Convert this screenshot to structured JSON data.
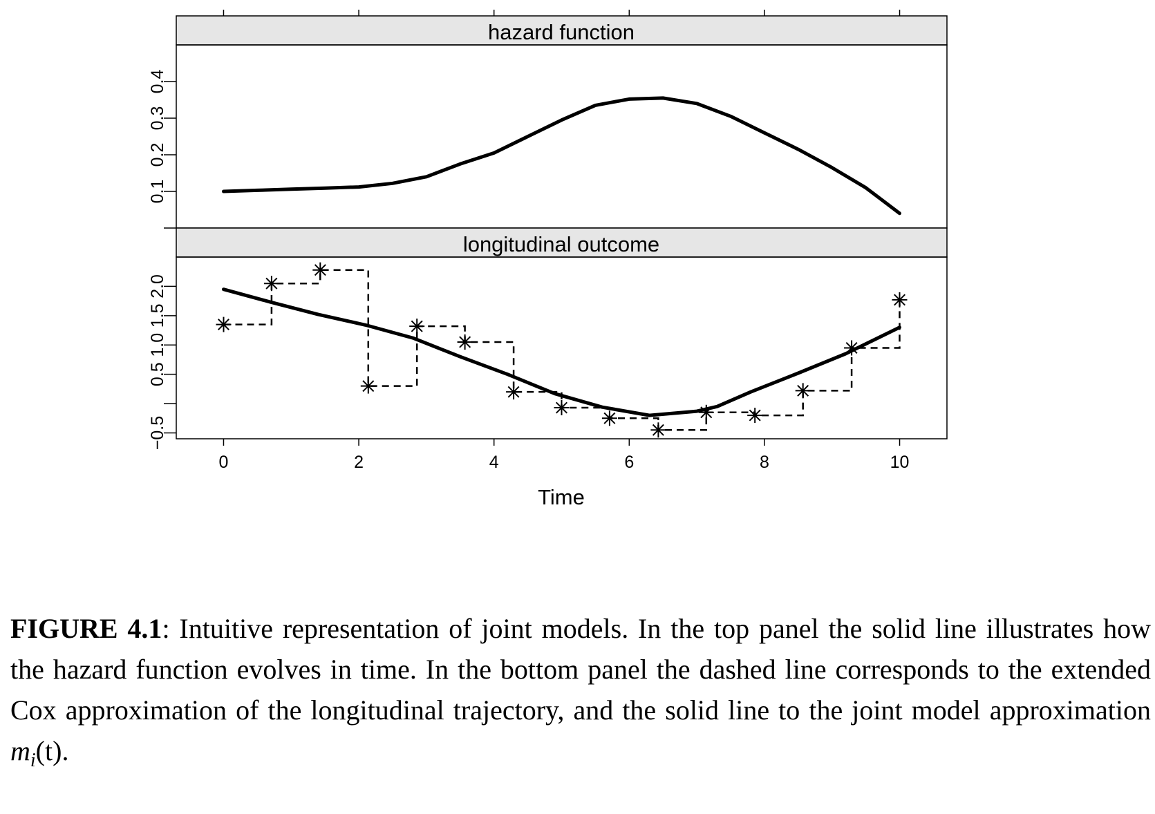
{
  "chart_data": [
    {
      "type": "line",
      "title": "hazard function",
      "xlim": [
        -0.7,
        10.7
      ],
      "ylim": [
        0,
        0.5
      ],
      "yticks": [
        0.1,
        0.2,
        0.3,
        0.4
      ],
      "ytick_labels": [
        "0.1",
        "0.2",
        "0.3",
        "0.4"
      ],
      "top_tick_positions": [
        0,
        2,
        4,
        6,
        8,
        10
      ],
      "series": [
        {
          "style": "solid",
          "x": [
            0,
            0.5,
            1,
            1.5,
            2,
            2.5,
            3,
            3.5,
            4,
            4.5,
            5,
            5.5,
            6,
            6.5,
            7,
            7.5,
            8,
            8.5,
            9,
            9.5,
            10
          ],
          "y": [
            0.1,
            0.103,
            0.106,
            0.109,
            0.112,
            0.122,
            0.14,
            0.175,
            0.205,
            0.25,
            0.295,
            0.335,
            0.352,
            0.355,
            0.34,
            0.305,
            0.26,
            0.215,
            0.165,
            0.11,
            0.04
          ]
        }
      ]
    },
    {
      "type": "line",
      "title": "longitudinal outcome",
      "xlabel": "Time",
      "xlim": [
        -0.7,
        10.7
      ],
      "ylim": [
        -0.6,
        2.5
      ],
      "xticks": [
        0,
        2,
        4,
        6,
        8,
        10
      ],
      "xtick_labels": [
        "0",
        "2",
        "4",
        "6",
        "8",
        "10"
      ],
      "yticks": [
        -0.5,
        0,
        0.5,
        1.0,
        1.5,
        2.0
      ],
      "ytick_labels": [
        "−0.5",
        "",
        "0.5",
        "1.0",
        "1.5",
        "2.0"
      ],
      "series": [
        {
          "style": "solid",
          "x": [
            0,
            0.7,
            1.4,
            2.1,
            2.8,
            3.5,
            4.2,
            4.9,
            5.6,
            6.3,
            7.0,
            7.3,
            7.8,
            8.5,
            9.2,
            10
          ],
          "y": [
            1.95,
            1.73,
            1.52,
            1.34,
            1.12,
            0.8,
            0.5,
            0.17,
            -0.06,
            -0.2,
            -0.13,
            -0.05,
            0.2,
            0.52,
            0.85,
            1.3
          ]
        },
        {
          "style": "dashed-step",
          "points": true,
          "marker": "asterisk",
          "x": [
            0,
            0.71,
            1.43,
            2.14,
            2.86,
            3.57,
            4.29,
            5.0,
            5.71,
            6.43,
            7.14,
            7.86,
            8.57,
            9.29,
            10
          ],
          "y": [
            1.35,
            2.05,
            2.28,
            0.3,
            1.32,
            1.05,
            0.2,
            -0.07,
            -0.25,
            -0.45,
            -0.15,
            -0.2,
            0.22,
            0.95,
            1.77
          ]
        }
      ]
    }
  ],
  "caption": {
    "label": "FIGURE 4.1",
    "text": ": Intuitive representation of joint models. In the top panel the solid line illustrates how the hazard function evolves in time. In the bottom panel the dashed line corresponds to the extended Cox approximation of the longitudinal trajectory, and the solid line to the joint model approximation ",
    "math": "mi(t)",
    "end": "."
  }
}
